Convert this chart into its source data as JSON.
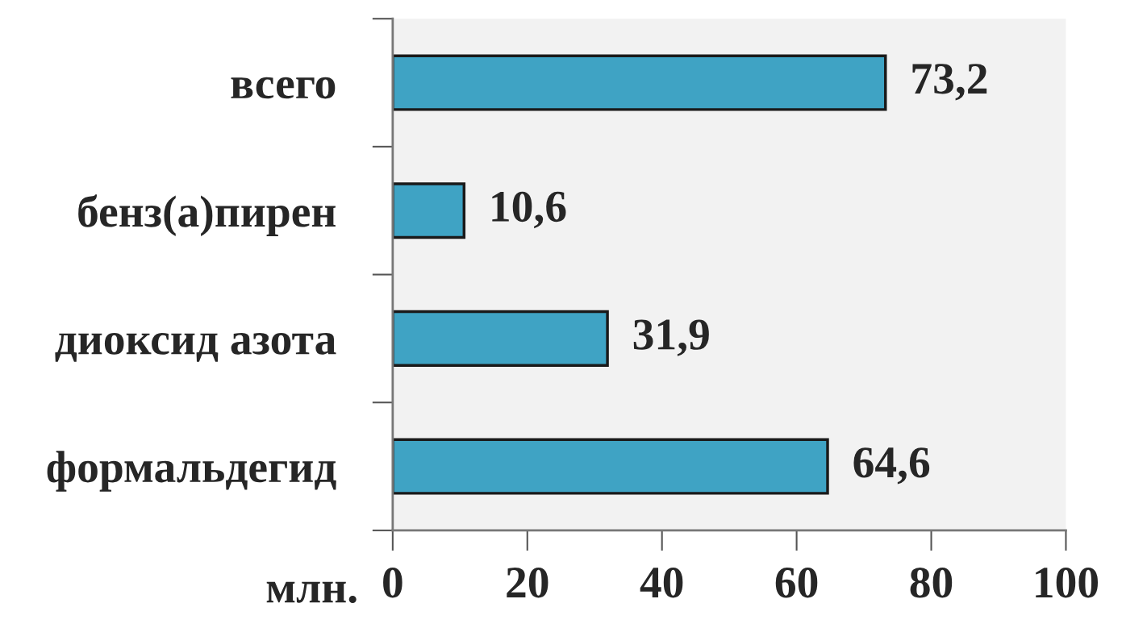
{
  "chart_data": {
    "type": "bar",
    "orientation": "horizontal",
    "categories": [
      "всего",
      "бенз(а)пирен",
      "диоксид азота",
      "формальдегид"
    ],
    "values": [
      73.2,
      10.6,
      31.9,
      64.6
    ],
    "value_labels": [
      "73,2",
      "10,6",
      "31,9",
      "64,6"
    ],
    "color": "#3fa3c4",
    "xlabel": "млн.",
    "xlim": [
      0,
      100
    ],
    "xticks": [
      0,
      20,
      40,
      60,
      80,
      100
    ],
    "grid": false,
    "legend": false
  }
}
